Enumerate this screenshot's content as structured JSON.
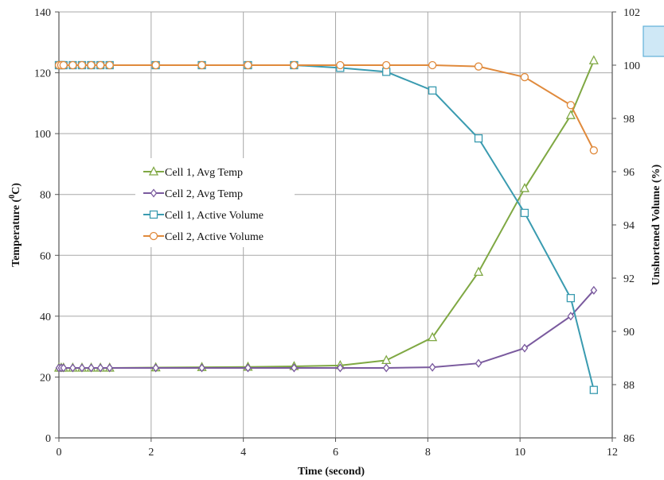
{
  "chart_data": {
    "type": "line",
    "title": "",
    "xlabel": "Time (second)",
    "ylabel_left": "Temperature (",
    "ylabel_left_sup": "0",
    "ylabel_left_end": "C)",
    "ylabel_right": "Unshortened Volume (%)",
    "xlim": [
      0,
      12
    ],
    "ylim_left": [
      0,
      140
    ],
    "ylim_right": [
      86,
      102
    ],
    "x_ticks": [
      "0",
      "2",
      "4",
      "6",
      "8",
      "10",
      "12"
    ],
    "y_left_ticks": [
      "0",
      "20",
      "40",
      "60",
      "80",
      "100",
      "120",
      "140"
    ],
    "y_right_ticks": [
      "86",
      "88",
      "90",
      "92",
      "94",
      "96",
      "98",
      "100",
      "102"
    ],
    "grid": true,
    "legend_placement": "center-left",
    "series": [
      {
        "name": "Cell 1, Avg Temp",
        "axis": "left",
        "color": "#7fa843",
        "marker": "triangle",
        "x": [
          0,
          0.05,
          0.1,
          0.3,
          0.5,
          0.7,
          0.9,
          1.1,
          2.1,
          3.1,
          4.1,
          5.1,
          6.1,
          7.1,
          8.1,
          9.1,
          10.1,
          11.1,
          11.6
        ],
        "values": [
          23,
          23,
          23,
          23,
          23,
          23,
          23,
          23,
          23.1,
          23.2,
          23.3,
          23.5,
          23.8,
          25.5,
          33,
          54.5,
          82,
          106,
          124
        ]
      },
      {
        "name": "Cell 2, Avg Temp",
        "axis": "left",
        "color": "#7a5a9e",
        "marker": "diamond",
        "x": [
          0,
          0.05,
          0.1,
          0.3,
          0.5,
          0.7,
          0.9,
          1.1,
          2.1,
          3.1,
          4.1,
          5.1,
          6.1,
          7.1,
          8.1,
          9.1,
          10.1,
          11.1,
          11.6
        ],
        "values": [
          23,
          23,
          23,
          23,
          23,
          23,
          23,
          23,
          23,
          23,
          23,
          23,
          23,
          23,
          23.2,
          24.5,
          29.5,
          40,
          48.5
        ]
      },
      {
        "name": "Cell 1, Active Volume",
        "axis": "right",
        "color": "#3a9bb0",
        "marker": "square",
        "x": [
          0,
          0.05,
          0.1,
          0.3,
          0.5,
          0.7,
          0.9,
          1.1,
          2.1,
          3.1,
          4.1,
          5.1,
          6.1,
          7.1,
          8.1,
          9.1,
          10.1,
          11.1,
          11.6
        ],
        "values": [
          100,
          100,
          100,
          100,
          100,
          100,
          100,
          100,
          100,
          100,
          100,
          100,
          99.9,
          99.75,
          99.05,
          97.25,
          94.45,
          91.25,
          87.8
        ]
      },
      {
        "name": "Cell 2, Active Volume",
        "axis": "right",
        "color": "#e08a3c",
        "marker": "circle",
        "x": [
          0,
          0.05,
          0.1,
          0.3,
          0.5,
          0.7,
          0.9,
          1.1,
          2.1,
          3.1,
          4.1,
          5.1,
          6.1,
          7.1,
          8.1,
          9.1,
          10.1,
          11.1,
          11.6
        ],
        "values": [
          100,
          100,
          100,
          100,
          100,
          100,
          100,
          100,
          100,
          100,
          100,
          100,
          100,
          100,
          100,
          99.95,
          99.55,
          98.5,
          96.8
        ]
      }
    ]
  }
}
